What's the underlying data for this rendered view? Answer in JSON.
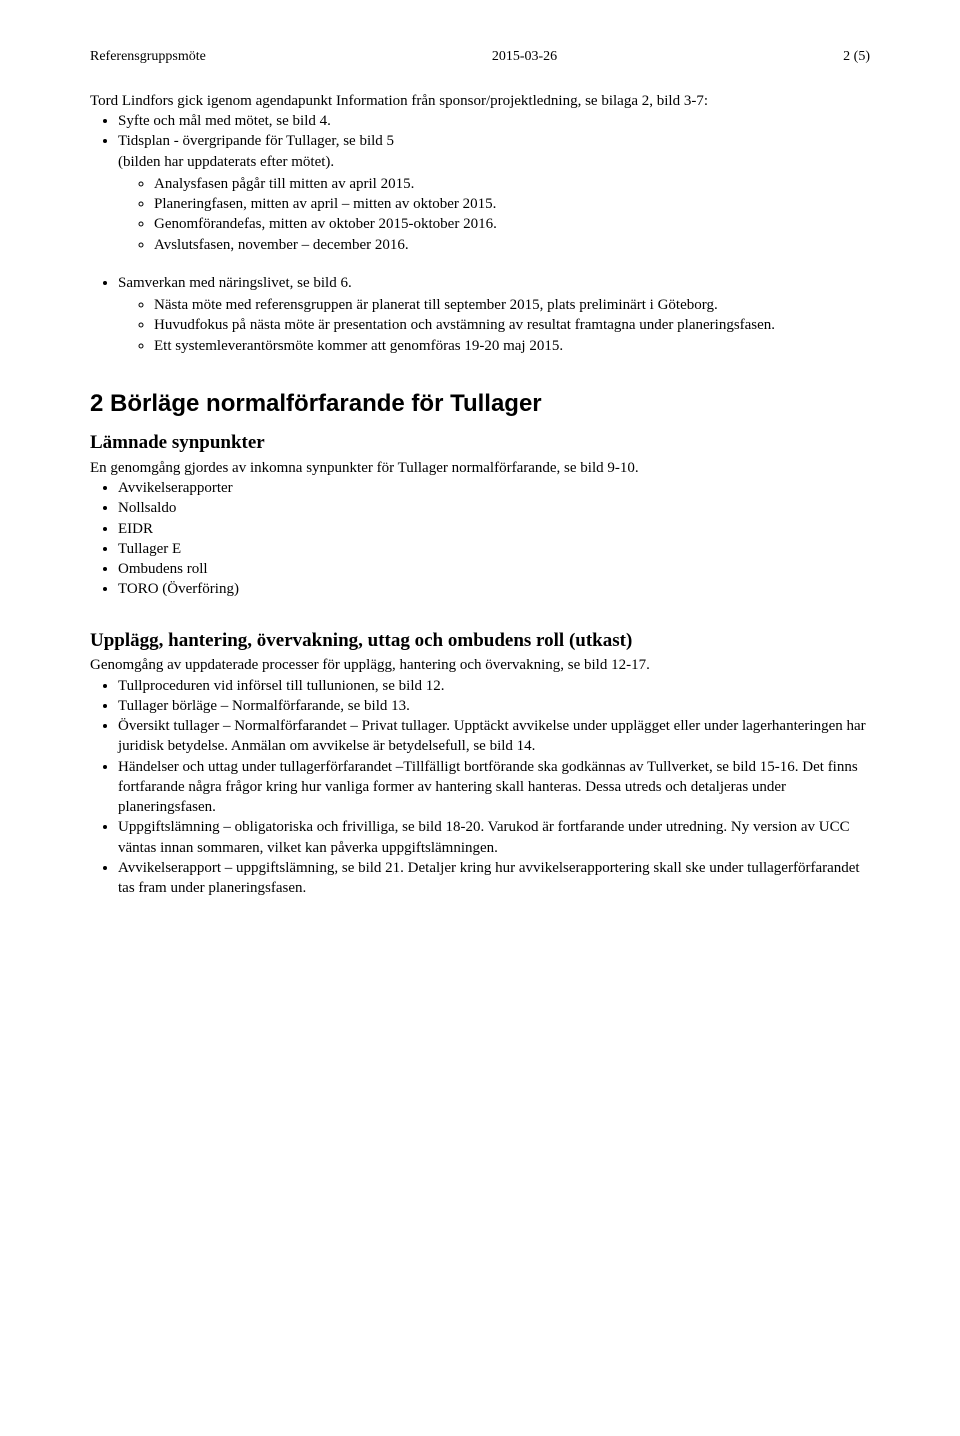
{
  "header": {
    "left": "Referensgruppsmöte",
    "center": "2015-03-26",
    "right": "2 (5)"
  },
  "intro": {
    "line1": "Tord Lindfors gick igenom agendapunkt Information från sponsor/projektledning, se bilaga 2, bild 3-7:",
    "bullets": [
      "Syfte och mål med mötet, se bild 4.",
      "Tidsplan - övergripande för Tullager, se bild 5\n(bilden har uppdaterats efter mötet)."
    ],
    "tids_sub": [
      "Analysfasen pågår till mitten av april 2015.",
      "Planeringfasen, mitten av april – mitten av oktober 2015.",
      "Genomförandefas, mitten av oktober 2015-oktober 2016.",
      "Avslutsfasen, november – december 2016."
    ],
    "samverkan_bullet": "Samverkan med näringslivet, se bild 6.",
    "samverkan_sub": [
      "Nästa möte med referensgruppen är planerat till september 2015, plats preliminärt i Göteborg.",
      "Huvudfokus på nästa möte är presentation och avstämning av resultat framtagna under planeringsfasen.",
      "Ett systemleverantörsmöte kommer att genomföras 19-20 maj 2015."
    ]
  },
  "section2": {
    "heading": "2  Börläge normalförfarande för Tullager",
    "lamnade_title": "Lämnade synpunkter",
    "lamnade_intro": "En genomgång gjordes av inkomna synpunkter för Tullager normalförfarande, se bild 9-10.",
    "lamnade_bullets": [
      "Avvikelserapporter",
      "Nollsaldo",
      "EIDR",
      "Tullager E",
      "Ombudens roll",
      "TORO (Överföring)"
    ],
    "upplagg_title": "Upplägg, hantering, övervakning, uttag och ombudens roll (utkast)",
    "upplagg_intro": "Genomgång av uppdaterade processer för upplägg, hantering och övervakning, se bild 12-17.",
    "upplagg_bullets": [
      "Tullproceduren vid införsel till tullunionen, se bild 12.",
      "Tullager börläge – Normalförfarande, se bild 13.",
      "Översikt tullager – Normalförfarandet – Privat tullager. Upptäckt avvikelse under upplägget eller under lagerhanteringen har juridisk betydelse. Anmälan om avvikelse är betydelsefull, se bild 14.",
      "Händelser och uttag under tullagerförfarandet –Tillfälligt bortförande ska godkännas av Tullverket, se bild 15-16. Det finns fortfarande några frågor kring hur vanliga former av hantering skall hanteras. Dessa utreds och detaljeras under planeringsfasen.",
      "Uppgiftslämning – obligatoriska och frivilliga, se bild 18-20. Varukod är fortfarande under utredning. Ny version av UCC väntas innan sommaren, vilket kan påverka uppgiftslämningen.",
      "Avvikelserapport – uppgiftslämning, se bild 21. Detaljer kring hur avvikelserapportering skall ske under tullagerförfarandet tas fram under planeringsfasen."
    ]
  }
}
